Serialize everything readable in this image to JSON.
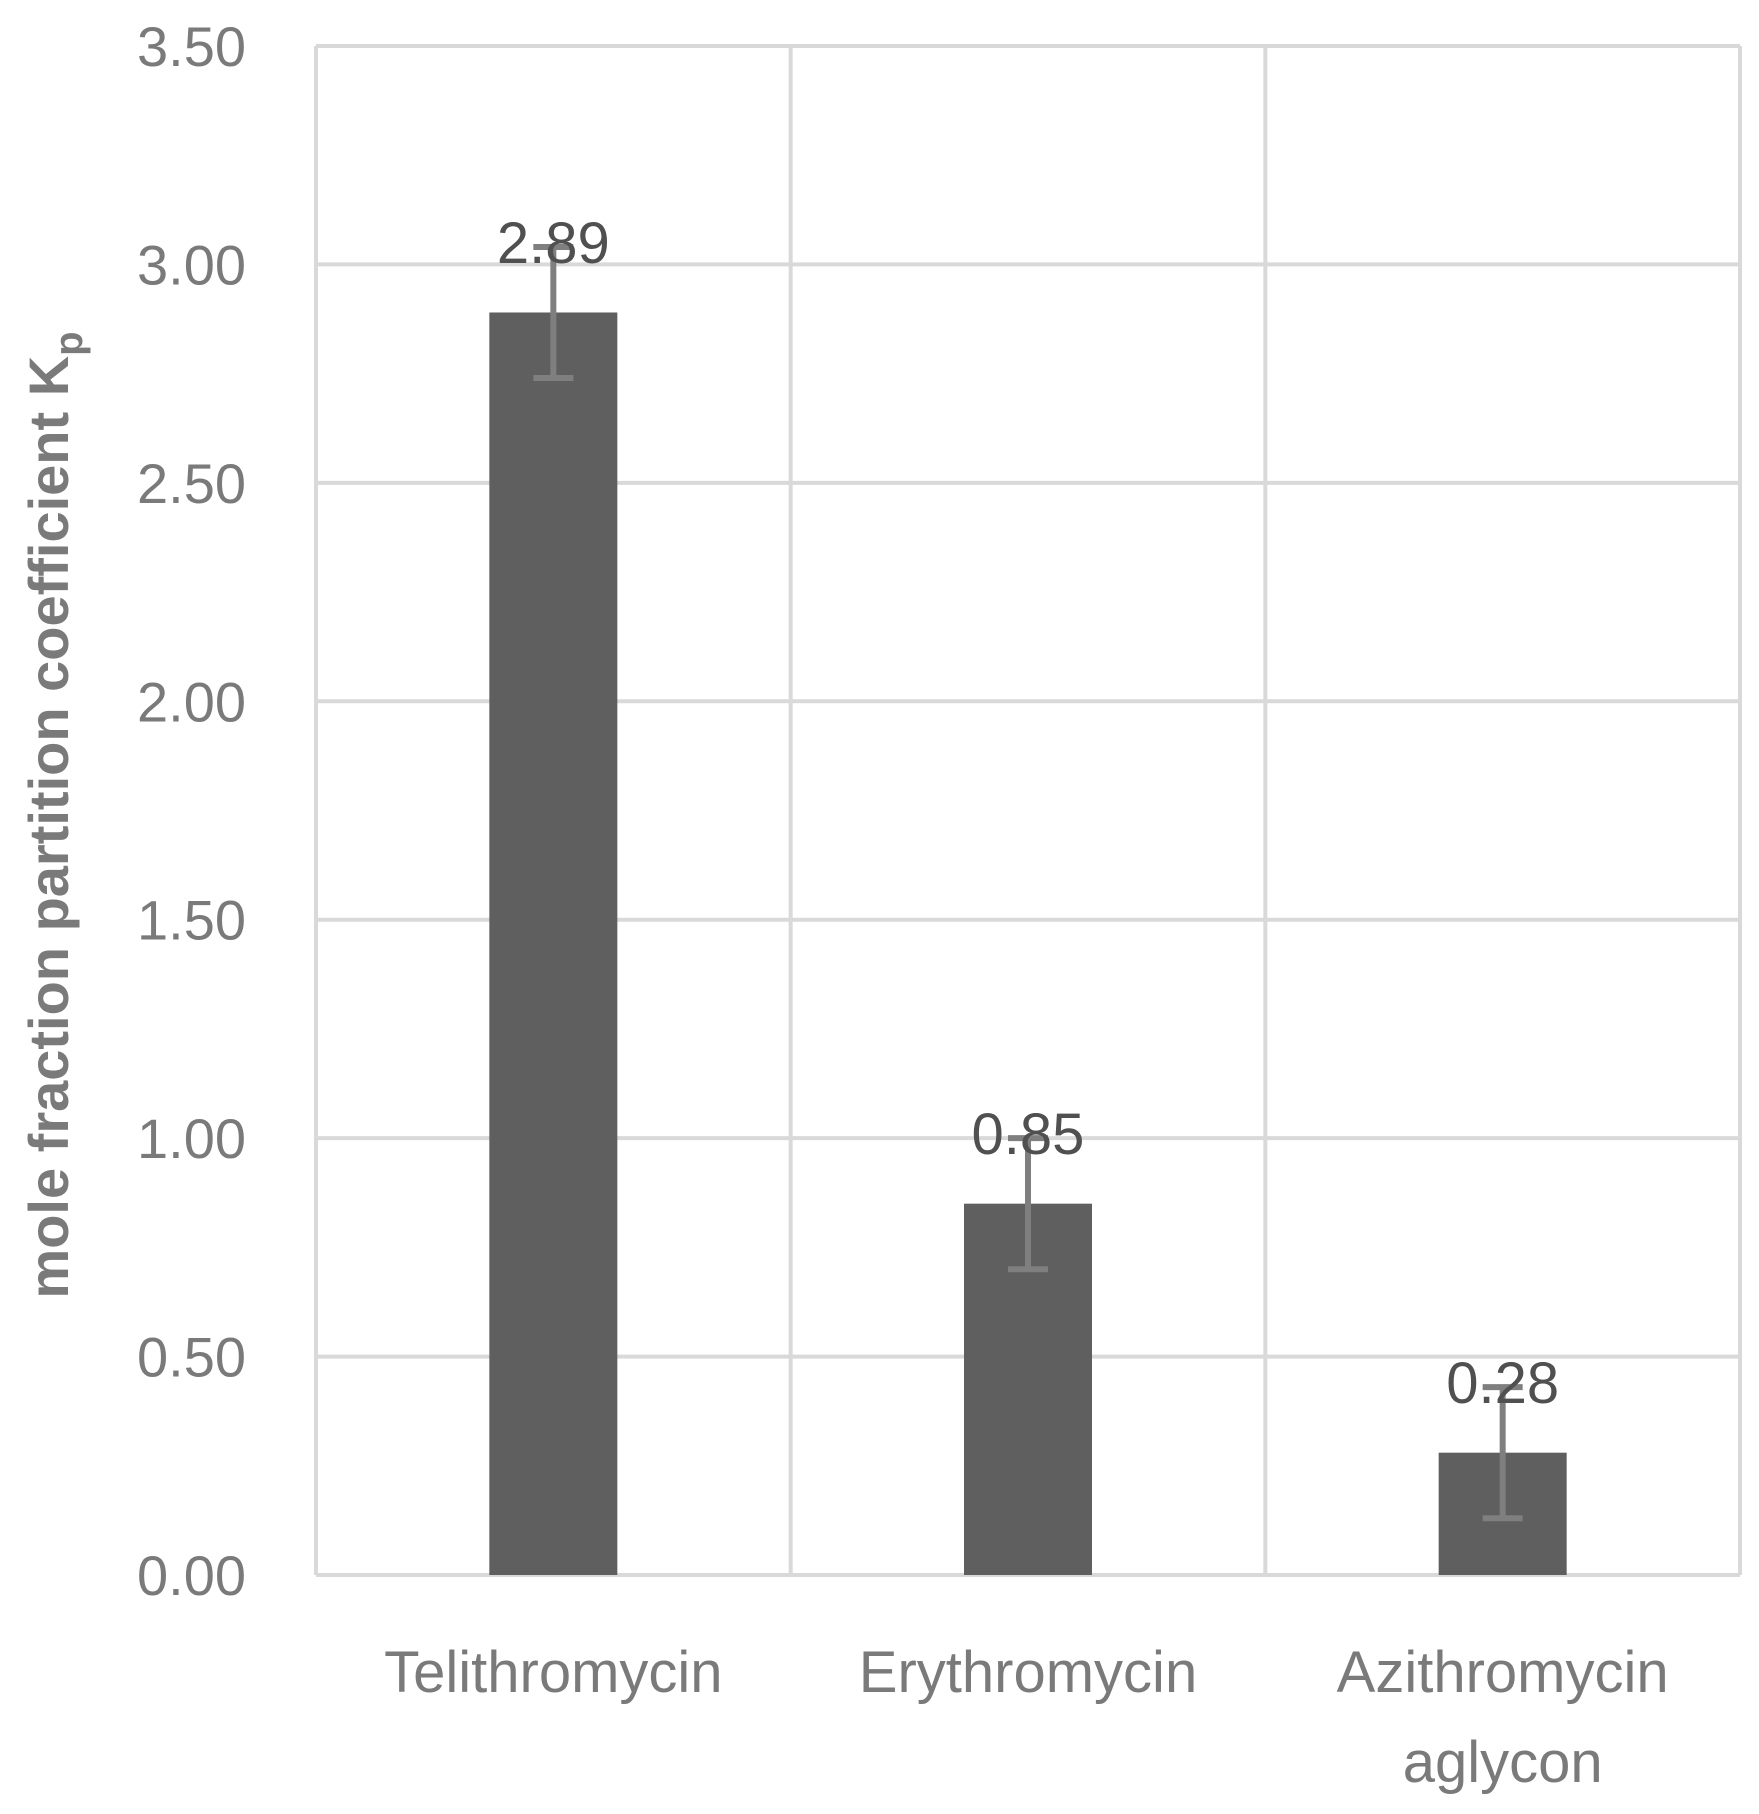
{
  "chart_data": {
    "type": "bar",
    "categories": [
      "Telithromycin",
      "Erythromycin",
      "Azithromycin aglycon"
    ],
    "category_lines": [
      [
        "Telithromycin"
      ],
      [
        "Erythromycin"
      ],
      [
        "Azithromycin",
        "aglycon"
      ]
    ],
    "values": [
      2.89,
      0.85,
      0.28
    ],
    "data_labels": [
      "2.89",
      "0.85",
      "0.28"
    ],
    "error_bars": [
      0.15,
      0.15,
      0.15
    ],
    "title": "",
    "xlabel": "",
    "ylabel": "mole fraction partition coefficient  K",
    "ylabel_subscript": "p",
    "ylim": [
      0,
      3.5
    ],
    "yticks": [
      0,
      0.5,
      1.0,
      1.5,
      2.0,
      2.5,
      3.0,
      3.5
    ],
    "ytick_labels": [
      "0.00",
      "0.50",
      "1.00",
      "1.50",
      "2.00",
      "2.50",
      "3.00",
      "3.50"
    ],
    "grid": true,
    "colors": {
      "bar": "#5f5f5f",
      "error_bar": "#7f7f7f",
      "grid": "#d9d9d9",
      "text": "#7a7a7a"
    }
  }
}
